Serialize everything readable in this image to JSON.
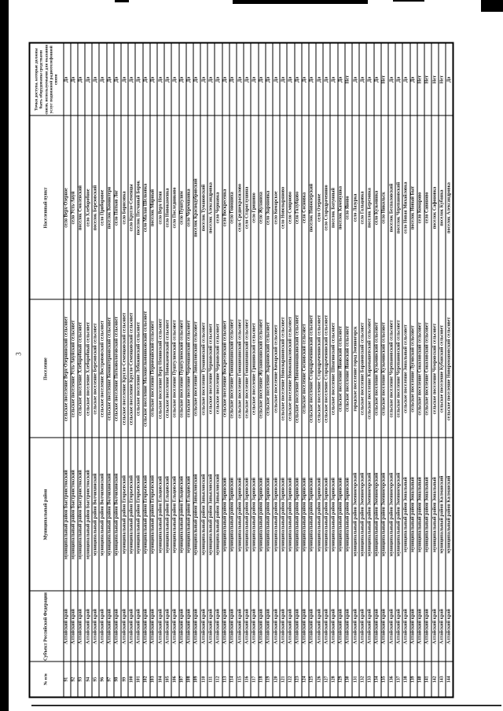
{
  "page": {
    "number": "3"
  },
  "table": {
    "headers": {
      "num": "№ п/п",
      "region": "Субъект Российской Федерации",
      "district": "Муниципальный район",
      "settlement": "Поселение",
      "locality": "Населенный пункт",
      "access": "Точки доступа, которые должны быть оборудованы средствами связи, используемыми для оказания услуг подвижной радиотелефонной связи"
    },
    "rows": [
      {
        "num": "91",
        "region": "Алтайский край",
        "district": "муниципальный район Быстроистокский",
        "settlement": "сельское поселение Верх-Озернинский сельсовет",
        "locality": "село Верх-Озерное",
        "access": "Да"
      },
      {
        "num": "92",
        "region": "Алтайский край",
        "district": "муниципальный район Быстроистокский",
        "settlement": "сельское поселение Усть-Ануйский сельсовет",
        "locality": "село Усть-Ануй",
        "access": "Да"
      },
      {
        "num": "93",
        "region": "Алтайский край",
        "district": "муниципальный район Быстроистокский",
        "settlement": "сельское поселение Хлеборобный сельсовет",
        "locality": "поселок Смоленский",
        "access": "Да"
      },
      {
        "num": "94",
        "region": "Алтайский край",
        "district": "муниципальный район Быстроистокский",
        "settlement": "сельское поселение Хлеборобный сельсовет",
        "locality": "село Хлеборобное",
        "access": "Да"
      },
      {
        "num": "95",
        "region": "Алтайский край",
        "district": "муниципальный район Волчихинский",
        "settlement": "сельское поселение Березовский сельсовет",
        "locality": "поселок Березовский",
        "access": "Да"
      },
      {
        "num": "96",
        "region": "Алтайский край",
        "district": "муниципальный район Волчихинский",
        "settlement": "сельское поселение Вострововский сельсовет",
        "locality": "село Приборовое",
        "access": "Да"
      },
      {
        "num": "97",
        "region": "Алтайский край",
        "district": "муниципальный район Волчихинский",
        "settlement": "сельское поселение Коминтерновский сельсовет",
        "locality": "поселок Коминтерн",
        "access": "Да"
      },
      {
        "num": "98",
        "region": "Алтайский край",
        "district": "муниципальный район Волчихинский",
        "settlement": "сельское поселение Пятковологовский сельсовет",
        "locality": "село Пятков Лог",
        "access": "Да"
      },
      {
        "num": "99",
        "region": "Алтайский край",
        "district": "муниципальный район Егорьевский",
        "settlement": "сельское поселение Кругло-Семенцовский сельсовет",
        "locality": "село Борисовка",
        "access": "Да"
      },
      {
        "num": "100",
        "region": "Алтайский край",
        "district": "муниципальный район Егорьевский",
        "settlement": "сельское поселение Кругло-Семенцовский сельсовет",
        "locality": "село Кругло-Семенцы",
        "access": "Да"
      },
      {
        "num": "101",
        "region": "Алтайский край",
        "district": "муниципальный район Егорьевский",
        "settlement": "сельское поселение Лебяжинский сельсовет",
        "locality": "поселок Песчаный Борок",
        "access": "Да"
      },
      {
        "num": "102",
        "region": "Алтайский край",
        "district": "муниципальный район Егорьевский",
        "settlement": "сельское поселение Малошелковниковский сельсовет",
        "locality": "село Малая Шелковка",
        "access": "Да"
      },
      {
        "num": "103",
        "region": "Алтайский край",
        "district": "муниципальный район Егорьевский",
        "settlement": "сельское поселение Первомайский сельсовет",
        "locality": "поселок Мирный",
        "access": "Да"
      },
      {
        "num": "104",
        "region": "Алтайский край",
        "district": "муниципальный район Ельцовский",
        "settlement": "сельское поселение Верх-Ненинский сельсовет",
        "locality": "село Верх-Неня",
        "access": "Да"
      },
      {
        "num": "105",
        "region": "Алтайский край",
        "district": "муниципальный район Ельцовский",
        "settlement": "сельское поселение Новокаменский сельсовет",
        "locality": "село Новокаменка",
        "access": "Да"
      },
      {
        "num": "106",
        "region": "Алтайский край",
        "district": "муниципальный район Ельцовский",
        "settlement": "сельское поселение Пуштулимский сельсовет",
        "locality": "село Последниково",
        "access": "Да"
      },
      {
        "num": "107",
        "region": "Алтайский край",
        "district": "муниципальный район Ельцовский",
        "settlement": "сельское поселение Пуштулимский сельсовет",
        "locality": "село Пуштулим",
        "access": "Да"
      },
      {
        "num": "108",
        "region": "Алтайский край",
        "district": "муниципальный район Ельцовский",
        "settlement": "сельское поселение Черемшанский сельсовет",
        "locality": "село Черемшанка",
        "access": "Да"
      },
      {
        "num": "109",
        "region": "Алтайский край",
        "district": "муниципальный район Завьяловский",
        "settlement": "сельское поселение Завьяловский сельсовет",
        "locality": "поселок Краснодубровский",
        "access": "Да"
      },
      {
        "num": "110",
        "region": "Алтайский край",
        "district": "муниципальный район Завьяловский",
        "settlement": "сельское поселение Тумановский сельсовет",
        "locality": "поселок Тумановский",
        "access": "Да"
      },
      {
        "num": "111",
        "region": "Алтайский край",
        "district": "муниципальный район Завьяловский",
        "settlement": "сельское поселение Чернавский сельсовет",
        "locality": "поселок Александровка",
        "access": "Да"
      },
      {
        "num": "112",
        "region": "Алтайский край",
        "district": "муниципальный район Завьяловский",
        "settlement": "сельское поселение Чернавский сельсовет",
        "locality": "село Чернавка",
        "access": "Да"
      },
      {
        "num": "113",
        "region": "Алтайский край",
        "district": "муниципальный район Заринский",
        "settlement": "сельское поселение Воскресенский сельсовет",
        "locality": "село Воскресенка",
        "access": "Да"
      },
      {
        "num": "114",
        "region": "Алтайский край",
        "district": "муниципальный район Заринский",
        "settlement": "сельское поселение Гоношихинский сельсовет",
        "locality": "село Гоношиха",
        "access": "Да"
      },
      {
        "num": "115",
        "region": "Алтайский край",
        "district": "муниципальный район Заринский",
        "settlement": "сельское поселение Гоношихинский сельсовет",
        "locality": "село Среднекрасилово",
        "access": "Да"
      },
      {
        "num": "116",
        "region": "Алтайский край",
        "district": "муниципальный район Заринский",
        "settlement": "сельское поселение Гоношихинский сельсовет",
        "locality": "село Староглушина",
        "access": "Да"
      },
      {
        "num": "117",
        "region": "Алтайский край",
        "district": "муниципальный район Заринский",
        "settlement": "сельское поселение Гришинский сельсовет",
        "locality": "село Гришино",
        "access": "Да"
      },
      {
        "num": "118",
        "region": "Алтайский край",
        "district": "муниципальный район Заринский",
        "settlement": "сельское поселение Жуланихинский сельсовет",
        "locality": "село Жуланиха",
        "access": "Да"
      },
      {
        "num": "119",
        "region": "Алтайский край",
        "district": "муниципальный район Заринский",
        "settlement": "сельское поселение Зыряновский сельсовет",
        "locality": "село Зыряновка",
        "access": "Да"
      },
      {
        "num": "120",
        "region": "Алтайский край",
        "district": "муниципальный район Заринский",
        "settlement": "сельское поселение Комарский сельсовет",
        "locality": "село Комарское",
        "access": "Да"
      },
      {
        "num": "121",
        "region": "Алтайский край",
        "district": "муниципальный район Заринский",
        "settlement": "сельское поселение Новозыряновский сельсовет",
        "locality": "село Новозыряново",
        "access": "Да"
      },
      {
        "num": "122",
        "region": "Алтайский край",
        "district": "муниципальный район Заринский",
        "settlement": "сельское поселение Новокопыловский сельсовет",
        "locality": "село Смирново",
        "access": "Да"
      },
      {
        "num": "123",
        "region": "Алтайский край",
        "district": "муниципальный район Заринский",
        "settlement": "сельское поселение Новомоношкинский сельсовет",
        "locality": "село Голубцово",
        "access": "Да"
      },
      {
        "num": "124",
        "region": "Алтайский край",
        "district": "муниципальный район Заринский",
        "settlement": "сельское поселение Сосновский сельсовет",
        "locality": "село Сосновка",
        "access": "Да"
      },
      {
        "num": "125",
        "region": "Алтайский край",
        "district": "муниципальный район Заринский",
        "settlement": "сельское поселение Стародраченинский сельсовет",
        "locality": "поселок Новоозерский",
        "access": "Да"
      },
      {
        "num": "126",
        "region": "Алтайский край",
        "district": "муниципальный район Заринский",
        "settlement": "сельское поселение Стародраченинский сельсовет",
        "locality": "село Озерное",
        "access": "Да"
      },
      {
        "num": "127",
        "region": "Алтайский край",
        "district": "муниципальный район Заринский",
        "settlement": "сельское поселение Стародраченинский сельсовет",
        "locality": "село Стародраченино",
        "access": "Да"
      },
      {
        "num": "128",
        "region": "Алтайский край",
        "district": "муниципальный район Заринский",
        "settlement": "сельское поселение Шпагинский сельсовет",
        "locality": "поселок Батунный",
        "access": "Да"
      },
      {
        "num": "129",
        "region": "Алтайский край",
        "district": "муниципальный район Заринский",
        "settlement": "сельское поселение Яновский сельсовет",
        "locality": "поселок Каменушка",
        "access": "Да"
      },
      {
        "num": "130",
        "region": "Алтайский край",
        "district": "муниципальный район Заринский",
        "settlement": "сельское поселение Яновский сельсовет",
        "locality": "село Яново",
        "access": "Нет"
      },
      {
        "num": "131",
        "region": "Алтайский край",
        "district": "муниципальный район Змеиногорский",
        "settlement": "городское поселение город Змеиногорск",
        "locality": "село Лазурка",
        "access": "Да"
      },
      {
        "num": "132",
        "region": "Алтайский край",
        "district": "муниципальный район Змеиногорский",
        "settlement": "сельское поселение Барановский сельсовет",
        "locality": "село Гальцовка",
        "access": "Да"
      },
      {
        "num": "133",
        "region": "Алтайский край",
        "district": "муниципальный район Змеиногорский",
        "settlement": "сельское поселение Карамышевский сельсовет",
        "locality": "поселок Березовка",
        "access": "Да"
      },
      {
        "num": "134",
        "region": "Алтайский край",
        "district": "муниципальный район Змеиногорский",
        "settlement": "сельское поселение Кузьминский сельсовет",
        "locality": "село Кузьминка",
        "access": "Да"
      },
      {
        "num": "135",
        "region": "Алтайский край",
        "district": "муниципальный район Змеиногорский",
        "settlement": "сельское поселение Кузьминский сельсовет",
        "locality": "село Никольск",
        "access": "Нет"
      },
      {
        "num": "136",
        "region": "Алтайский край",
        "district": "муниципальный район Змеиногорский",
        "settlement": "сельское поселение Черепановский сельсовет",
        "locality": "поселок Беспаловский",
        "access": "Да"
      },
      {
        "num": "137",
        "region": "Алтайский край",
        "district": "муниципальный район Змеиногорский",
        "settlement": "сельское поселение Черепановский сельсовет",
        "locality": "поселок Черепановский",
        "access": "Да"
      },
      {
        "num": "138",
        "region": "Алтайский край",
        "district": "муниципальный район Зональный",
        "settlement": "сельское поселение Зональный сельсовет",
        "locality": "село Новая Михайловка",
        "access": "Да"
      },
      {
        "num": "139",
        "region": "Алтайский край",
        "district": "муниципальный район Зональный",
        "settlement": "сельское поселение Луговской сельсовет",
        "locality": "поселок Новый Быт",
        "access": "Да"
      },
      {
        "num": "140",
        "region": "Алтайский край",
        "district": "муниципальный район Зональный",
        "settlement": "сельское поселение Соколовский сельсовет",
        "locality": "село Комарово",
        "access": "Нет"
      },
      {
        "num": "141",
        "region": "Алтайский край",
        "district": "муниципальный район Зональный",
        "settlement": "сельское поселение Соколовский сельсовет",
        "locality": "село Савиново",
        "access": "Нет"
      },
      {
        "num": "142",
        "region": "Алтайский край",
        "district": "муниципальный район Зональный",
        "settlement": "сельское поселение Чемровский сельсовет",
        "locality": "поселок Сафоновка",
        "access": "Нет"
      },
      {
        "num": "143",
        "region": "Алтайский край",
        "district": "муниципальный район Калманский",
        "settlement": "сельское поселение Кубанский сельсовет",
        "locality": "поселок Кубанка",
        "access": "Нет"
      },
      {
        "num": "144",
        "region": "Алтайский край",
        "district": "муниципальный район Калманский",
        "settlement": "сельское поселение Новоромановский сельсовет",
        "locality": "поселок Александровка",
        "access": "Да"
      }
    ]
  }
}
